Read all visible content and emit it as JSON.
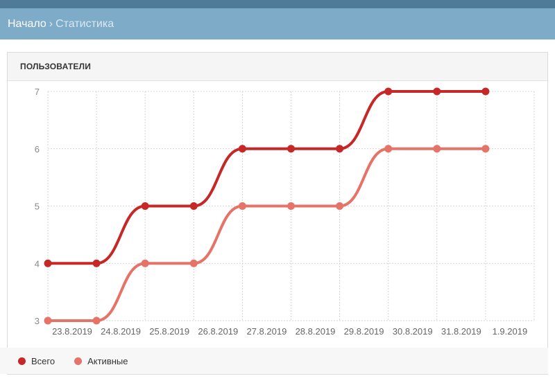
{
  "breadcrumb": {
    "home": "Начало",
    "separator": "›",
    "current": "Статистика"
  },
  "panel": {
    "title": "ПОЛЬЗОВАТЕЛИ"
  },
  "chart_data": {
    "type": "line",
    "categories": [
      "23.8.2019",
      "24.8.2019",
      "25.8.2019",
      "26.8.2019",
      "27.8.2019",
      "28.8.2019",
      "29.8.2019",
      "30.8.2019",
      "31.8.2019",
      "1.9.2019"
    ],
    "series": [
      {
        "name": "Всего",
        "color": "#c62828",
        "values": [
          4,
          4,
          5,
          5,
          6,
          6,
          6,
          7,
          7,
          7
        ]
      },
      {
        "name": "Активные",
        "color": "#e57368",
        "values": [
          3,
          3,
          4,
          4,
          5,
          5,
          5,
          6,
          6,
          6
        ]
      }
    ],
    "yticks": [
      3,
      4,
      5,
      6,
      7
    ],
    "ylim": [
      3,
      7
    ],
    "grid": true,
    "legend_position": "bottom-left"
  }
}
